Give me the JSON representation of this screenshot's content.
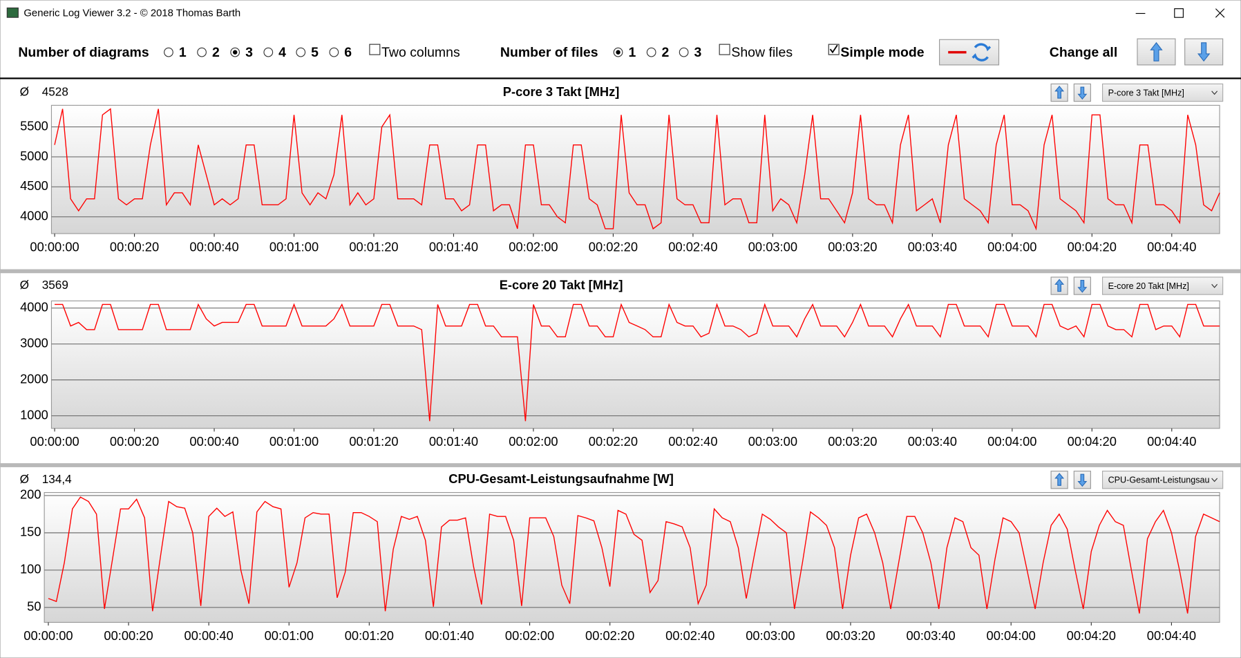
{
  "window": {
    "title": "Generic Log Viewer 3.2 - © 2018 Thomas Barth"
  },
  "toolbar": {
    "diagrams_label": "Number of diagrams",
    "diagram_options": [
      {
        "label": "1",
        "checked": false
      },
      {
        "label": "2",
        "checked": false
      },
      {
        "label": "3",
        "checked": true
      },
      {
        "label": "4",
        "checked": false
      },
      {
        "label": "5",
        "checked": false
      },
      {
        "label": "6",
        "checked": false
      }
    ],
    "two_columns": {
      "label": "Two columns",
      "checked": false
    },
    "files_label": "Number of files",
    "file_options": [
      {
        "label": "1",
        "checked": true
      },
      {
        "label": "2",
        "checked": false
      },
      {
        "label": "3",
        "checked": false
      }
    ],
    "show_files": {
      "label": "Show files",
      "checked": false
    },
    "simple_mode": {
      "label": "Simple mode",
      "checked": true
    },
    "change_all": "Change all"
  },
  "chart_data": [
    {
      "type": "line",
      "title": "P-core 3 Takt [MHz]",
      "mean_symbol": "Ø",
      "mean": "4528",
      "selector": "P-core 3 Takt [MHz]",
      "color": "#ff0000",
      "grid": true,
      "x": [
        0,
        2,
        4,
        6,
        8,
        10,
        12,
        14,
        16,
        18,
        20,
        22,
        24,
        26,
        28,
        30,
        32,
        34,
        36,
        38,
        40,
        42,
        44,
        46,
        48,
        50,
        52,
        54,
        56,
        58,
        60,
        62,
        64,
        66,
        68,
        70,
        72,
        74,
        76,
        78,
        80,
        82,
        84,
        86,
        88,
        90,
        92,
        94,
        96,
        98,
        100,
        102,
        104,
        106,
        108,
        110,
        112,
        114,
        116,
        118,
        120,
        122,
        124,
        126,
        128,
        130,
        132,
        134,
        136,
        138,
        140,
        142,
        144,
        146,
        148,
        150,
        152,
        154,
        156,
        158,
        160,
        162,
        164,
        166,
        168,
        170,
        172,
        174,
        176,
        178,
        180,
        182,
        184,
        186,
        188,
        190,
        192,
        194,
        196,
        198,
        200,
        202,
        204,
        206,
        208,
        210,
        212,
        214,
        216,
        218,
        220,
        222,
        224,
        226,
        228,
        230,
        232,
        234,
        236,
        238,
        240,
        242,
        244,
        246,
        248,
        250,
        252,
        254,
        256,
        258,
        260,
        262,
        264,
        266,
        268,
        270,
        272,
        274,
        276,
        278,
        280,
        282,
        284,
        286,
        288,
        290,
        292
      ],
      "values": [
        5200,
        5800,
        4300,
        4100,
        4300,
        4300,
        5700,
        5800,
        4300,
        4200,
        4300,
        4300,
        5200,
        5800,
        4200,
        4400,
        4400,
        4200,
        5200,
        4700,
        4200,
        4300,
        4200,
        4300,
        5200,
        5200,
        4200,
        4200,
        4200,
        4300,
        5700,
        4400,
        4200,
        4400,
        4300,
        4700,
        5700,
        4200,
        4400,
        4200,
        4300,
        5500,
        5700,
        4300,
        4300,
        4300,
        4200,
        5200,
        5200,
        4300,
        4300,
        4100,
        4200,
        5200,
        5200,
        4100,
        4200,
        4200,
        3800,
        5200,
        5200,
        4200,
        4200,
        4000,
        3900,
        5200,
        5200,
        4300,
        4200,
        3800,
        3800,
        5700,
        4400,
        4200,
        4200,
        3800,
        3900,
        5700,
        4300,
        4200,
        4200,
        3900,
        3900,
        5700,
        4200,
        4300,
        4300,
        3900,
        3900,
        5700,
        4100,
        4300,
        4200,
        3900,
        4700,
        5700,
        4300,
        4300,
        4100,
        3900,
        4400,
        5700,
        4300,
        4200,
        4200,
        3900,
        5200,
        5700,
        4100,
        4200,
        4300,
        3900,
        5200,
        5700,
        4300,
        4200,
        4100,
        3900,
        5200,
        5700,
        4200,
        4200,
        4100,
        3800,
        5200,
        5700,
        4300,
        4200,
        4100,
        3900,
        5700,
        5700,
        4300,
        4200,
        4200,
        3900,
        5200,
        5200,
        4200,
        4200,
        4100,
        3900,
        5700,
        5200,
        4200,
        4100,
        4400
      ],
      "xlim": [
        -0.8,
        292
      ],
      "ylim": [
        3720,
        5860
      ],
      "yticks": [
        4000,
        4500,
        5000,
        5500
      ],
      "xticks": [
        {
          "value": 0,
          "label": "00:00:00"
        },
        {
          "value": 20,
          "label": "00:00:20"
        },
        {
          "value": 40,
          "label": "00:00:40"
        },
        {
          "value": 60,
          "label": "00:01:00"
        },
        {
          "value": 80,
          "label": "00:01:20"
        },
        {
          "value": 100,
          "label": "00:01:40"
        },
        {
          "value": 120,
          "label": "00:02:00"
        },
        {
          "value": 140,
          "label": "00:02:20"
        },
        {
          "value": 160,
          "label": "00:02:40"
        },
        {
          "value": 180,
          "label": "00:03:00"
        },
        {
          "value": 200,
          "label": "00:03:20"
        },
        {
          "value": 220,
          "label": "00:03:40"
        },
        {
          "value": 240,
          "label": "00:04:00"
        },
        {
          "value": 260,
          "label": "00:04:20"
        },
        {
          "value": 280,
          "label": "00:04:40"
        }
      ]
    },
    {
      "type": "line",
      "title": "E-core 20 Takt [MHz]",
      "mean_symbol": "Ø",
      "mean": "3569",
      "selector": "E-core 20 Takt [MHz]",
      "color": "#ff0000",
      "grid": true,
      "x": [
        0,
        2,
        4,
        6,
        8,
        10,
        12,
        14,
        16,
        18,
        20,
        22,
        24,
        26,
        28,
        30,
        32,
        34,
        36,
        38,
        40,
        42,
        44,
        46,
        48,
        50,
        52,
        54,
        56,
        58,
        60,
        62,
        64,
        66,
        68,
        70,
        72,
        74,
        76,
        78,
        80,
        82,
        84,
        86,
        88,
        90,
        92,
        94,
        96,
        98,
        100,
        102,
        104,
        106,
        108,
        110,
        112,
        114,
        116,
        118,
        120,
        122,
        124,
        126,
        128,
        130,
        132,
        134,
        136,
        138,
        140,
        142,
        144,
        146,
        148,
        150,
        152,
        154,
        156,
        158,
        160,
        162,
        164,
        166,
        168,
        170,
        172,
        174,
        176,
        178,
        180,
        182,
        184,
        186,
        188,
        190,
        192,
        194,
        196,
        198,
        200,
        202,
        204,
        206,
        208,
        210,
        212,
        214,
        216,
        218,
        220,
        222,
        224,
        226,
        228,
        230,
        232,
        234,
        236,
        238,
        240,
        242,
        244,
        246,
        248,
        250,
        252,
        254,
        256,
        258,
        260,
        262,
        264,
        266,
        268,
        270,
        272,
        274,
        276,
        278,
        280,
        282,
        284,
        286,
        288,
        290,
        292
      ],
      "values": [
        4100,
        4100,
        3500,
        3600,
        3400,
        3400,
        4100,
        4100,
        3400,
        3400,
        3400,
        3400,
        4100,
        4100,
        3400,
        3400,
        3400,
        3400,
        4100,
        3700,
        3500,
        3600,
        3600,
        3600,
        4100,
        4100,
        3500,
        3500,
        3500,
        3500,
        4100,
        3500,
        3500,
        3500,
        3500,
        3700,
        4100,
        3500,
        3500,
        3500,
        3500,
        4100,
        4100,
        3500,
        3500,
        3500,
        3400,
        850,
        4100,
        3500,
        3500,
        3500,
        4100,
        4100,
        3500,
        3500,
        3200,
        3200,
        3200,
        850,
        4100,
        3500,
        3500,
        3200,
        3200,
        4100,
        4100,
        3500,
        3500,
        3200,
        3200,
        4100,
        3600,
        3500,
        3400,
        3200,
        3200,
        4100,
        3600,
        3500,
        3500,
        3200,
        3300,
        4100,
        3500,
        3500,
        3400,
        3200,
        3300,
        4100,
        3500,
        3500,
        3500,
        3200,
        3700,
        4100,
        3500,
        3500,
        3500,
        3200,
        3600,
        4100,
        3500,
        3500,
        3500,
        3200,
        3700,
        4100,
        3500,
        3500,
        3500,
        3200,
        4100,
        4100,
        3500,
        3500,
        3500,
        3200,
        4100,
        4100,
        3500,
        3500,
        3500,
        3200,
        4100,
        4100,
        3500,
        3400,
        3500,
        3200,
        4100,
        4100,
        3500,
        3400,
        3400,
        3200,
        4100,
        4100,
        3400,
        3500,
        3500,
        3200,
        4100,
        4100,
        3500,
        3500,
        3500
      ],
      "xlim": [
        -0.8,
        292
      ],
      "ylim": [
        650,
        4200
      ],
      "yticks": [
        1000,
        2000,
        3000,
        4000
      ],
      "xticks": [
        {
          "value": 0,
          "label": "00:00:00"
        },
        {
          "value": 20,
          "label": "00:00:20"
        },
        {
          "value": 40,
          "label": "00:00:40"
        },
        {
          "value": 60,
          "label": "00:01:00"
        },
        {
          "value": 80,
          "label": "00:01:20"
        },
        {
          "value": 100,
          "label": "00:01:40"
        },
        {
          "value": 120,
          "label": "00:02:00"
        },
        {
          "value": 140,
          "label": "00:02:20"
        },
        {
          "value": 160,
          "label": "00:02:40"
        },
        {
          "value": 180,
          "label": "00:03:00"
        },
        {
          "value": 200,
          "label": "00:03:20"
        },
        {
          "value": 220,
          "label": "00:03:40"
        },
        {
          "value": 240,
          "label": "00:04:00"
        },
        {
          "value": 260,
          "label": "00:04:20"
        },
        {
          "value": 280,
          "label": "00:04:40"
        }
      ]
    },
    {
      "type": "line",
      "title": "CPU-Gesamt-Leistungsaufnahme [W]",
      "mean_symbol": "Ø",
      "mean": "134,4",
      "selector": "CPU-Gesamt-Leistungsau",
      "color": "#ff0000",
      "grid": true,
      "x": [
        0,
        2,
        4,
        6,
        8,
        10,
        12,
        14,
        16,
        18,
        20,
        22,
        24,
        26,
        28,
        30,
        32,
        34,
        36,
        38,
        40,
        42,
        44,
        46,
        48,
        50,
        52,
        54,
        56,
        58,
        60,
        62,
        64,
        66,
        68,
        70,
        72,
        74,
        76,
        78,
        80,
        82,
        84,
        86,
        88,
        90,
        92,
        94,
        96,
        98,
        100,
        102,
        104,
        106,
        108,
        110,
        112,
        114,
        116,
        118,
        120,
        122,
        124,
        126,
        128,
        130,
        132,
        134,
        136,
        138,
        140,
        142,
        144,
        146,
        148,
        150,
        152,
        154,
        156,
        158,
        160,
        162,
        164,
        166,
        168,
        170,
        172,
        174,
        176,
        178,
        180,
        182,
        184,
        186,
        188,
        190,
        192,
        194,
        196,
        198,
        200,
        202,
        204,
        206,
        208,
        210,
        212,
        214,
        216,
        218,
        220,
        222,
        224,
        226,
        228,
        230,
        232,
        234,
        236,
        238,
        240,
        242,
        244,
        246,
        248,
        250,
        252,
        254,
        256,
        258,
        260,
        262,
        264,
        266,
        268,
        270,
        272,
        274,
        276,
        278,
        280,
        282,
        284,
        286,
        288,
        290,
        292
      ],
      "values": [
        62,
        58,
        110,
        182,
        198,
        192,
        175,
        48,
        115,
        182,
        182,
        195,
        170,
        45,
        120,
        192,
        185,
        183,
        150,
        52,
        172,
        183,
        172,
        178,
        100,
        55,
        178,
        192,
        185,
        182,
        77,
        110,
        170,
        177,
        175,
        175,
        63,
        97,
        177,
        177,
        172,
        165,
        45,
        128,
        172,
        168,
        172,
        140,
        51,
        158,
        167,
        167,
        170,
        105,
        54,
        175,
        172,
        172,
        140,
        52,
        170,
        170,
        170,
        145,
        80,
        55,
        173,
        170,
        166,
        130,
        78,
        180,
        175,
        148,
        140,
        70,
        86,
        165,
        162,
        158,
        130,
        55,
        80,
        182,
        170,
        165,
        130,
        62,
        120,
        175,
        168,
        158,
        150,
        48,
        110,
        178,
        170,
        160,
        130,
        48,
        120,
        170,
        175,
        150,
        110,
        48,
        110,
        172,
        172,
        150,
        110,
        48,
        130,
        170,
        165,
        130,
        120,
        48,
        115,
        170,
        165,
        150,
        100,
        48,
        110,
        160,
        175,
        155,
        100,
        48,
        125,
        160,
        180,
        165,
        160,
        100,
        42,
        142,
        165,
        180,
        150,
        100,
        42,
        145,
        175,
        170,
        165
      ],
      "xlim": [
        -1,
        292
      ],
      "ylim": [
        30,
        204
      ],
      "yticks": [
        50,
        100,
        150,
        200
      ],
      "xticks": [
        {
          "value": 0,
          "label": "00:00:00"
        },
        {
          "value": 20,
          "label": "00:00:20"
        },
        {
          "value": 40,
          "label": "00:00:40"
        },
        {
          "value": 60,
          "label": "00:01:00"
        },
        {
          "value": 80,
          "label": "00:01:20"
        },
        {
          "value": 100,
          "label": "00:01:40"
        },
        {
          "value": 120,
          "label": "00:02:00"
        },
        {
          "value": 140,
          "label": "00:02:20"
        },
        {
          "value": 160,
          "label": "00:02:40"
        },
        {
          "value": 180,
          "label": "00:03:00"
        },
        {
          "value": 200,
          "label": "00:03:20"
        },
        {
          "value": 220,
          "label": "00:03:40"
        },
        {
          "value": 240,
          "label": "00:04:00"
        },
        {
          "value": 260,
          "label": "00:04:20"
        },
        {
          "value": 280,
          "label": "00:04:40"
        }
      ]
    }
  ]
}
